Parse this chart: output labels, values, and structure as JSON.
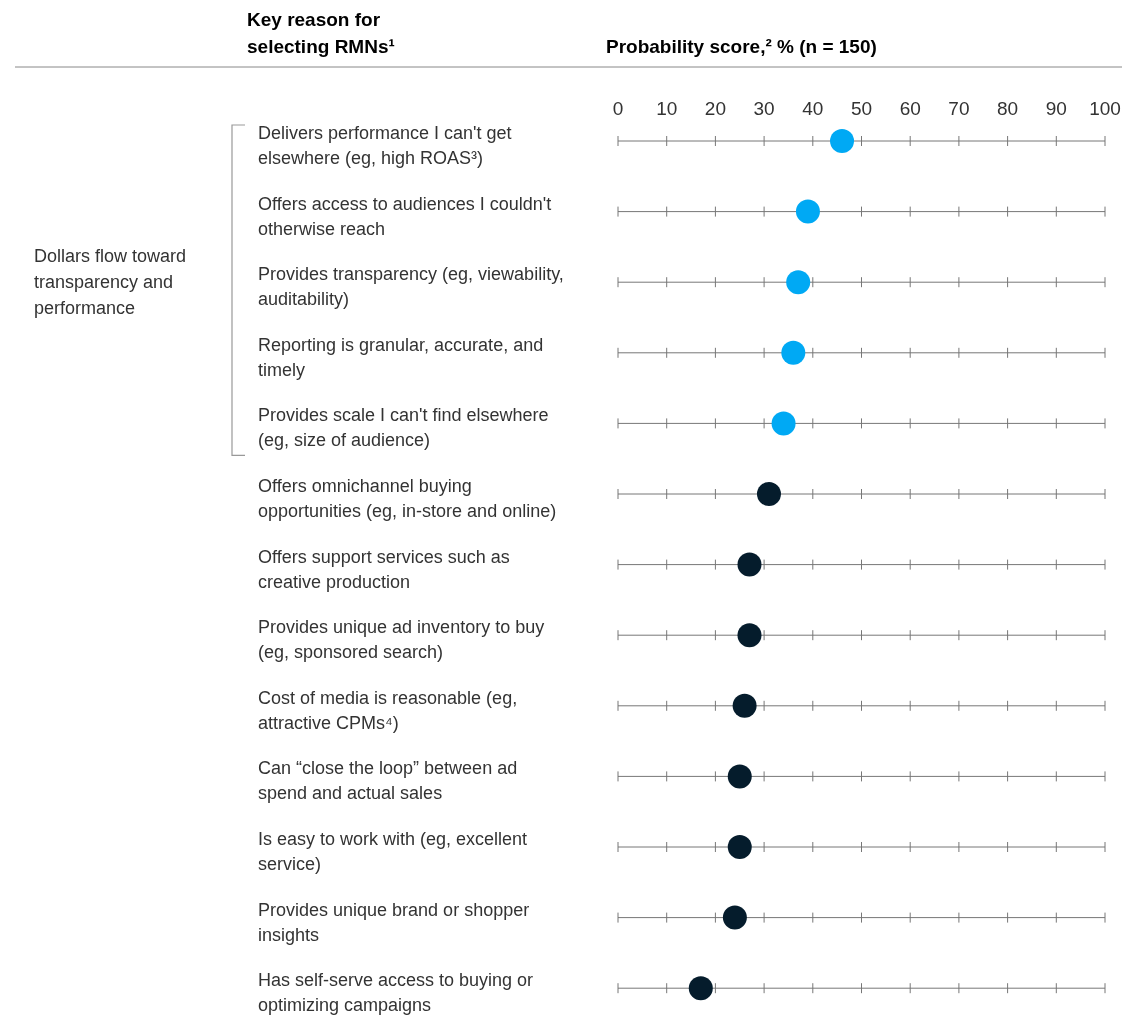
{
  "chart_data": {
    "type": "scatter",
    "orientation": "horizontal",
    "marker": "circle",
    "ylabel": "Key reason for selecting RMNs¹",
    "xlabel": "Probability score,² % (n = 150)",
    "categories": [
      "Delivers performance I can't get elsewhere (eg, high ROAS³)",
      "Offers access to audiences I couldn't otherwise reach",
      "Provides transparency (eg, viewability, auditability)",
      "Reporting is granular, accurate, and timely",
      "Provides scale I can't find elsewhere (eg, size of audience)",
      "Offers omnichannel buying opportunities (eg, in-store and online)",
      "Offers support services such as creative production",
      "Provides unique ad inventory to buy (eg, sponsored search)",
      "Cost of media is reasonable (eg, attractive CPMs⁴)",
      "Can “close the loop” between ad spend and actual sales",
      "Is easy to work with (eg, excellent service)",
      "Provides unique brand or shopper insights",
      "Has self-serve access to buying or optimizing campaigns"
    ],
    "values": [
      46,
      39,
      37,
      36,
      34,
      31,
      27,
      27,
      26,
      25,
      25,
      24,
      17
    ],
    "colors": [
      "#00a9f4",
      "#00a9f4",
      "#00a9f4",
      "#00a9f4",
      "#00a9f4",
      "#051c2c",
      "#051c2c",
      "#051c2c",
      "#051c2c",
      "#051c2c",
      "#051c2c",
      "#051c2c",
      "#051c2c"
    ],
    "xlim": [
      0,
      100
    ],
    "xticks": [
      0,
      10,
      20,
      30,
      40,
      50,
      60,
      70,
      80,
      90,
      100
    ],
    "grid": true,
    "annotations": [
      "Dollars flow toward transparency and performance"
    ]
  }
}
